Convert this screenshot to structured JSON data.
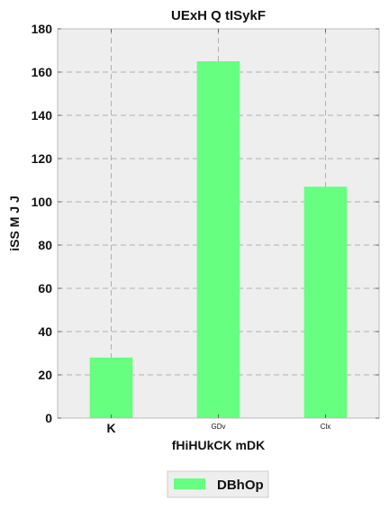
{
  "chart_data": {
    "type": "bar",
    "title": "UExH Q tISykF",
    "xlabel": "fHiHUkCK mDK",
    "ylabel": "iSS M J J",
    "categories": [
      "K",
      "GDv",
      "Clx"
    ],
    "series": [
      {
        "name": "DBhOp",
        "values": [
          28,
          165,
          107
        ],
        "color": "#66ff80"
      }
    ],
    "ylim": [
      0,
      180
    ],
    "yticks": [
      0,
      20,
      40,
      60,
      80,
      100,
      120,
      140,
      160,
      180
    ],
    "grid": true,
    "legend": "bottom-center",
    "colors": {
      "plot_background": "#eeeeee",
      "grid": "#b0b0b0",
      "axes": "#bbbbbb"
    }
  }
}
